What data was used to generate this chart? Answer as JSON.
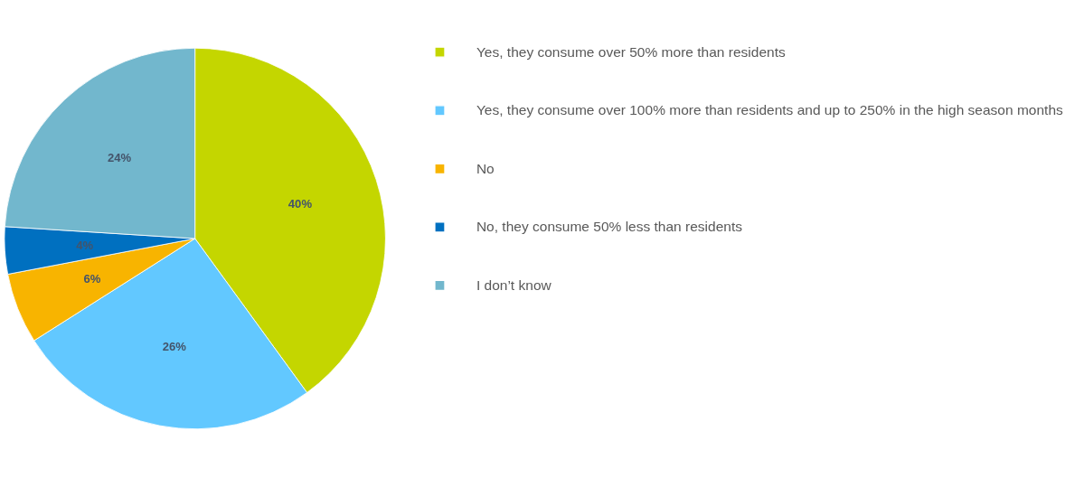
{
  "chart_data": {
    "type": "pie",
    "categories": [
      "Yes, they consume over 50% more than residents",
      "Yes, they consume over 100% more than residents and up to 250% in the high season months",
      "No",
      "No, they consume 50% less than residents",
      "I don’t know"
    ],
    "values": [
      40,
      26,
      6,
      4,
      24
    ],
    "colors": [
      "#c4d600",
      "#62c8ff",
      "#f8b400",
      "#0070c0",
      "#72b7cd"
    ],
    "value_labels": [
      "40%",
      "26%",
      "6%",
      "4%",
      "24%"
    ],
    "legend": "right"
  }
}
